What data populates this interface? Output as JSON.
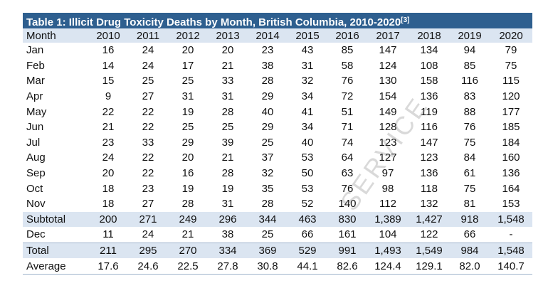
{
  "title": "Table 1: Illicit Drug Toxicity Deaths by Month, British Columbia, 2010-2020",
  "footnote": "[3]",
  "header": [
    "Month",
    "2010",
    "2011",
    "2012",
    "2013",
    "2014",
    "2015",
    "2016",
    "2017",
    "2018",
    "2019",
    "2020"
  ],
  "rows": [
    {
      "label": "Jan",
      "values": [
        "16",
        "24",
        "20",
        "20",
        "23",
        "43",
        "85",
        "147",
        "134",
        "94",
        "79"
      ],
      "kind": "month"
    },
    {
      "label": "Feb",
      "values": [
        "14",
        "24",
        "17",
        "21",
        "38",
        "31",
        "58",
        "124",
        "108",
        "85",
        "75"
      ],
      "kind": "month"
    },
    {
      "label": "Mar",
      "values": [
        "15",
        "25",
        "25",
        "33",
        "28",
        "32",
        "76",
        "130",
        "158",
        "116",
        "115"
      ],
      "kind": "month"
    },
    {
      "label": "Apr",
      "values": [
        "9",
        "27",
        "31",
        "31",
        "29",
        "34",
        "72",
        "154",
        "136",
        "83",
        "120"
      ],
      "kind": "month"
    },
    {
      "label": "May",
      "values": [
        "22",
        "22",
        "19",
        "28",
        "40",
        "41",
        "51",
        "149",
        "119",
        "88",
        "177"
      ],
      "kind": "month"
    },
    {
      "label": "Jun",
      "values": [
        "21",
        "22",
        "25",
        "25",
        "29",
        "34",
        "71",
        "128",
        "116",
        "76",
        "185"
      ],
      "kind": "month"
    },
    {
      "label": "Jul",
      "values": [
        "23",
        "33",
        "29",
        "39",
        "25",
        "40",
        "74",
        "123",
        "147",
        "75",
        "184"
      ],
      "kind": "month"
    },
    {
      "label": "Aug",
      "values": [
        "24",
        "22",
        "20",
        "21",
        "37",
        "53",
        "64",
        "127",
        "123",
        "84",
        "160"
      ],
      "kind": "month"
    },
    {
      "label": "Sep",
      "values": [
        "20",
        "22",
        "16",
        "28",
        "32",
        "50",
        "63",
        "97",
        "136",
        "61",
        "136"
      ],
      "kind": "month"
    },
    {
      "label": "Oct",
      "values": [
        "18",
        "23",
        "19",
        "19",
        "35",
        "53",
        "76",
        "98",
        "118",
        "75",
        "164"
      ],
      "kind": "month"
    },
    {
      "label": "Nov",
      "values": [
        "18",
        "27",
        "28",
        "31",
        "28",
        "52",
        "140",
        "112",
        "132",
        "81",
        "153"
      ],
      "kind": "month"
    },
    {
      "label": "Subtotal",
      "values": [
        "200",
        "271",
        "249",
        "296",
        "344",
        "463",
        "830",
        "1,389",
        "1,427",
        "918",
        "1,548"
      ],
      "kind": "subtotal"
    },
    {
      "label": "Dec",
      "values": [
        "11",
        "24",
        "21",
        "38",
        "25",
        "66",
        "161",
        "104",
        "122",
        "66",
        "-"
      ],
      "kind": "month"
    },
    {
      "label": "Total",
      "values": [
        "211",
        "295",
        "270",
        "334",
        "369",
        "529",
        "991",
        "1,493",
        "1,549",
        "984",
        "1,548"
      ],
      "kind": "total"
    },
    {
      "label": "Average",
      "values": [
        "17.6",
        "24.6",
        "22.5",
        "27.8",
        "30.8",
        "44.1",
        "82.6",
        "124.4",
        "129.1",
        "82.0",
        "140.7"
      ],
      "kind": "average"
    }
  ],
  "watermark": "SERVICE",
  "colors": {
    "title_bg": "#2e5f8f",
    "shade": "#dbe5f1"
  }
}
